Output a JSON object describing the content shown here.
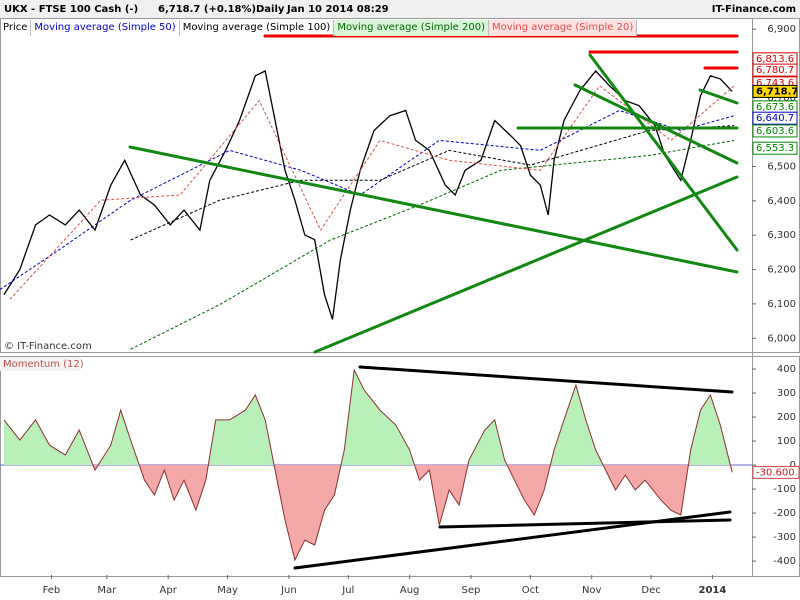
{
  "chart_data": [
    {
      "type": "line",
      "title": "UKX - FTSE 100 Cash (-)",
      "last": "6,718.7 (+0.18%)",
      "period": "Daily",
      "date": "Jan 10 2014 08:29",
      "source": "IT-Finance.com",
      "watermark": "© IT-Finance.com",
      "xlim": [
        6,
        386
      ],
      "ylim": [
        5960,
        6880
      ],
      "yticks": [
        {
          "value": 6000,
          "label": "6,000"
        },
        {
          "value": 6100,
          "label": "6,100"
        },
        {
          "value": 6200,
          "label": "6,200"
        },
        {
          "value": 6300,
          "label": "6,300"
        },
        {
          "value": 6400,
          "label": "6,400"
        },
        {
          "value": 6500,
          "label": "6,500"
        },
        {
          "value": 6600,
          "label": "6,600"
        },
        {
          "value": 6700,
          "label": "6,700"
        },
        {
          "value": 6800,
          "label": "6,800"
        },
        {
          "value": 6900,
          "label": "6,900"
        }
      ],
      "series": [
        {
          "name": "Price",
          "color": "#000000",
          "dash": false,
          "x": [
            8,
            16,
            24,
            31,
            39,
            46,
            54,
            62,
            69,
            77,
            84,
            92,
            99,
            107,
            112,
            120,
            127,
            135,
            140,
            145,
            150,
            155,
            160,
            165,
            170,
            174,
            178,
            183,
            188,
            195,
            203,
            211,
            216,
            223,
            231,
            236,
            241,
            249,
            256,
            264,
            269,
            274,
            279,
            283,
            286,
            291,
            299,
            307,
            314,
            322,
            329,
            337,
            342,
            350,
            355,
            360,
            365,
            370,
            376
          ],
          "values": [
            6127,
            6200,
            6330,
            6359,
            6330,
            6373,
            6315,
            6446,
            6518,
            6417,
            6388,
            6330,
            6373,
            6315,
            6460,
            6547,
            6634,
            6764,
            6778,
            6634,
            6489,
            6402,
            6301,
            6287,
            6127,
            6055,
            6229,
            6373,
            6489,
            6605,
            6648,
            6663,
            6576,
            6547,
            6446,
            6417,
            6489,
            6518,
            6634,
            6590,
            6561,
            6475,
            6446,
            6359,
            6518,
            6634,
            6721,
            6778,
            6735,
            6692,
            6677,
            6619,
            6532,
            6460,
            6576,
            6706,
            6764,
            6755,
            6718.7
          ]
        },
        {
          "name": "Moving average (Simple 50)",
          "color": "#0000cc",
          "dash": true,
          "x": [
            6,
            36,
            72,
            122,
            158,
            188,
            228,
            279,
            319,
            350,
            377
          ],
          "values": [
            6142,
            6258,
            6402,
            6547,
            6489,
            6417,
            6576,
            6547,
            6663,
            6605,
            6648
          ]
        },
        {
          "name": "Moving average (Simple 100)",
          "color": "#000000",
          "dash": true,
          "x": [
            72,
            117,
            158,
            198,
            233,
            274,
            334,
            377
          ],
          "values": [
            6286,
            6402,
            6460,
            6460,
            6547,
            6504,
            6605,
            6619
          ]
        },
        {
          "name": "Moving average (Simple 200)",
          "color": "#006600",
          "dash": true,
          "x": [
            72,
            117,
            173,
            218,
            259,
            334,
            377
          ],
          "values": [
            5968,
            6098,
            6286,
            6388,
            6489,
            6532,
            6576
          ]
        },
        {
          "name": "Moving average (Simple 20)",
          "color": "#e05050",
          "dash": true,
          "x": [
            11,
            57,
            97,
            137,
            168,
            198,
            233,
            279,
            309,
            345,
            377
          ],
          "values": [
            6113,
            6402,
            6417,
            6692,
            6315,
            6576,
            6518,
            6489,
            6735,
            6576,
            6735
          ]
        }
      ],
      "price_markers": [
        {
          "value": 6813.6,
          "label": "6,813.6",
          "color": "#dd0000",
          "highlight": false
        },
        {
          "value": 6780.7,
          "label": "6,780.7",
          "color": "#dd0000",
          "highlight": false
        },
        {
          "value": 6743.6,
          "label": "6,743.6",
          "color": "#dd0000",
          "highlight": false
        },
        {
          "value": 6718.7,
          "label": "6,718.7",
          "color": "#000000",
          "highlight": true
        },
        {
          "value": 6673.6,
          "label": "6,673.6",
          "color": "#008800",
          "highlight": false
        },
        {
          "value": 6640.7,
          "label": "6,640.7",
          "color": "#0000cc",
          "highlight": false
        },
        {
          "value": 6603.6,
          "label": "6,603.6",
          "color": "#008800",
          "highlight": false
        },
        {
          "value": 6553.3,
          "label": "6,553.3",
          "color": "#008800",
          "highlight": false
        }
      ]
    },
    {
      "type": "area",
      "title": "Momentum (12)",
      "xlim": [
        6,
        386
      ],
      "ylim": [
        -458,
        446
      ],
      "yticks": [
        -400,
        -300,
        -200,
        -100,
        0,
        100,
        200,
        300,
        400
      ],
      "xticks": [
        {
          "value": 32,
          "label": "Feb"
        },
        {
          "value": 60,
          "label": "Mar"
        },
        {
          "value": 91,
          "label": "Apr"
        },
        {
          "value": 121,
          "label": "May"
        },
        {
          "value": 152,
          "label": "Jun"
        },
        {
          "value": 182,
          "label": "Jul"
        },
        {
          "value": 213,
          "label": "Aug"
        },
        {
          "value": 244,
          "label": "Sep"
        },
        {
          "value": 274,
          "label": "Oct"
        },
        {
          "value": 305,
          "label": "Nov"
        },
        {
          "value": 335,
          "label": "Dec"
        },
        {
          "value": 366,
          "label": "2014"
        }
      ],
      "x": [
        8,
        16,
        24,
        31,
        39,
        46,
        54,
        62,
        67,
        72,
        79,
        84,
        89,
        94,
        99,
        105,
        110,
        115,
        122,
        130,
        135,
        140,
        145,
        150,
        155,
        160,
        165,
        170,
        175,
        180,
        185,
        190,
        198,
        206,
        213,
        218,
        223,
        228,
        233,
        238,
        243,
        251,
        256,
        261,
        266,
        271,
        276,
        281,
        286,
        291,
        297,
        302,
        307,
        312,
        317,
        322,
        327,
        332,
        340,
        345,
        350,
        355,
        360,
        365,
        370,
        376
      ],
      "values": [
        188,
        104,
        188,
        83,
        42,
        146,
        -21,
        83,
        229,
        104,
        -63,
        -125,
        -21,
        -146,
        -63,
        -188,
        -63,
        188,
        188,
        229,
        292,
        188,
        -21,
        -229,
        -396,
        -313,
        -333,
        -188,
        -125,
        63,
        396,
        313,
        229,
        167,
        63,
        -63,
        -21,
        -250,
        -104,
        -167,
        21,
        146,
        188,
        21,
        -63,
        -146,
        -208,
        -104,
        63,
        188,
        333,
        188,
        63,
        -21,
        -104,
        -42,
        -104,
        -63,
        -146,
        -188,
        -208,
        63,
        229,
        292,
        167,
        -30.6
      ],
      "positive_color": "#b8f0b8",
      "negative_color": "#f4a8a8",
      "line_color": "#8a3030",
      "last_value": {
        "value": -30.6,
        "label": "-30.600"
      }
    }
  ]
}
